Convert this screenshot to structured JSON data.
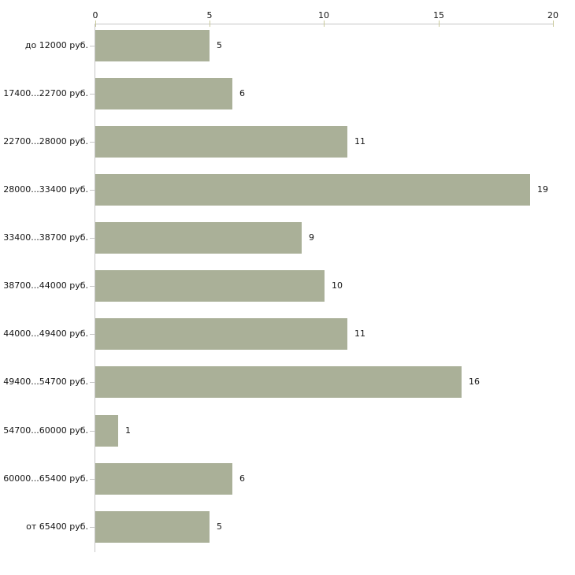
{
  "chart_data": {
    "type": "bar",
    "orientation": "horizontal",
    "title": "",
    "xlabel": "",
    "ylabel": "",
    "categories": [
      "до 12000 руб.",
      "17400...22700 руб.",
      "22700...28000 руб.",
      "28000...33400 руб.",
      "33400...38700 руб.",
      "38700...44000 руб.",
      "44000...49400 руб.",
      "49400...54700 руб.",
      "54700...60000 руб.",
      "60000...65400 руб.",
      "от 65400 руб."
    ],
    "values": [
      5,
      6,
      11,
      19,
      9,
      10,
      11,
      16,
      1,
      6,
      5
    ],
    "xlim": [
      0,
      20
    ],
    "x_ticks": [
      0,
      5,
      10,
      15,
      20
    ],
    "x_axis_position": "top",
    "grid": false,
    "legend": false,
    "bar_color": "#aab098",
    "axis_line_color": "#c6c6c6",
    "tick_color": "#c9c99b",
    "text_color": "#141414",
    "background_color": "#ffffff"
  }
}
